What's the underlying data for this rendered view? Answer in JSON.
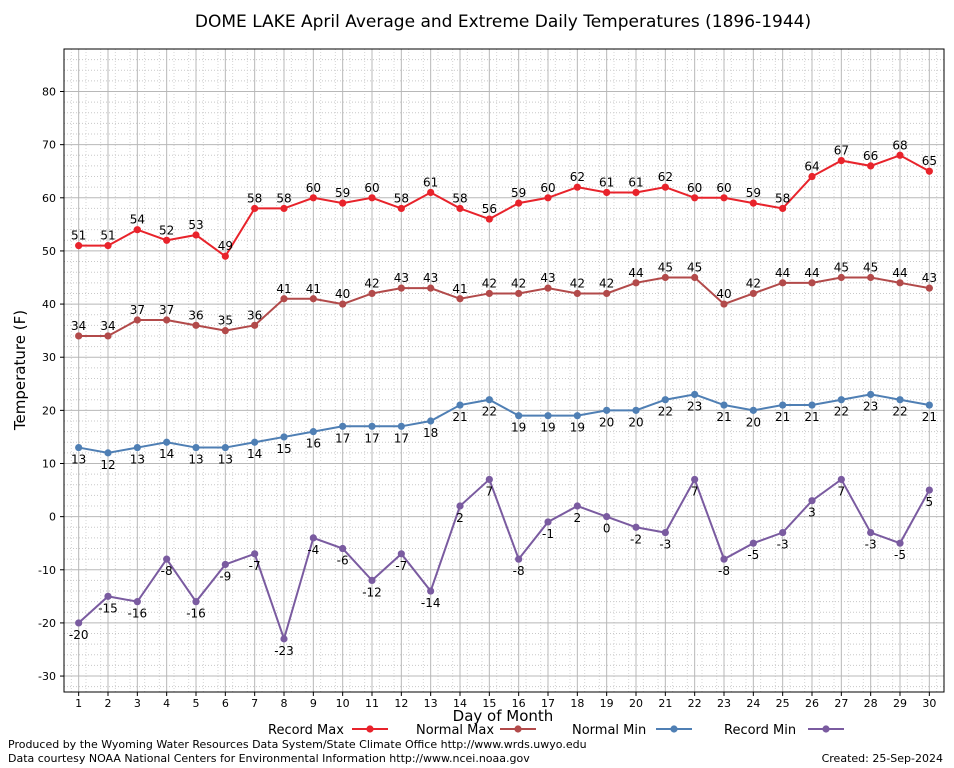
{
  "chart_data": {
    "type": "line",
    "title": "DOME LAKE April Average and Extreme Daily Temperatures (1896-1944)",
    "xlabel": "Day of Month",
    "ylabel": "Temperature (F)",
    "x": [
      1,
      2,
      3,
      4,
      5,
      6,
      7,
      8,
      9,
      10,
      11,
      12,
      13,
      14,
      15,
      16,
      17,
      18,
      19,
      20,
      21,
      22,
      23,
      24,
      25,
      26,
      27,
      28,
      29,
      30
    ],
    "xlim": [
      0.5,
      30.5
    ],
    "ylim": [
      -33,
      88
    ],
    "yticks": [
      -30,
      -20,
      -10,
      0,
      10,
      20,
      30,
      40,
      50,
      60,
      70,
      80
    ],
    "grid": true,
    "legend_position": "bottom",
    "series": [
      {
        "name": "Record Max",
        "color": "#e8232b",
        "label_position": "above",
        "values": [
          51,
          51,
          54,
          52,
          53,
          49,
          58,
          58,
          60,
          59,
          60,
          58,
          61,
          58,
          56,
          59,
          60,
          62,
          61,
          61,
          62,
          60,
          60,
          59,
          58,
          64,
          67,
          66,
          68,
          65
        ]
      },
      {
        "name": "Normal Max",
        "color": "#b24a4a",
        "label_position": "above",
        "values": [
          34,
          34,
          37,
          37,
          36,
          35,
          36,
          41,
          41,
          40,
          42,
          43,
          43,
          41,
          42,
          42,
          43,
          42,
          42,
          44,
          45,
          45,
          40,
          42,
          44,
          44,
          45,
          45,
          44,
          43
        ]
      },
      {
        "name": "Normal Min",
        "color": "#4f7fb4",
        "label_position": "below",
        "values": [
          13,
          12,
          13,
          14,
          13,
          13,
          14,
          15,
          16,
          17,
          17,
          17,
          18,
          21,
          22,
          19,
          19,
          19,
          20,
          20,
          22,
          23,
          21,
          20,
          21,
          21,
          22,
          23,
          22,
          21
        ]
      },
      {
        "name": "Record Min",
        "color": "#7a5ba0",
        "label_position": "below",
        "values": [
          -20,
          -15,
          -16,
          -8,
          -16,
          -9,
          -7,
          -23,
          -4,
          -6,
          -12,
          -7,
          -14,
          2,
          7,
          -8,
          -1,
          2,
          0,
          -2,
          -3,
          7,
          -8,
          -5,
          -3,
          3,
          7,
          -3,
          -5,
          5
        ]
      }
    ]
  },
  "footer": {
    "line1": "Produced by the Wyoming Water Resources Data System/State Climate Office http://www.wrds.uwyo.edu",
    "line2": "Data courtesy NOAA National Centers for Environmental Information http://www.ncei.noaa.gov",
    "created": "Created:  25-Sep-2024"
  }
}
